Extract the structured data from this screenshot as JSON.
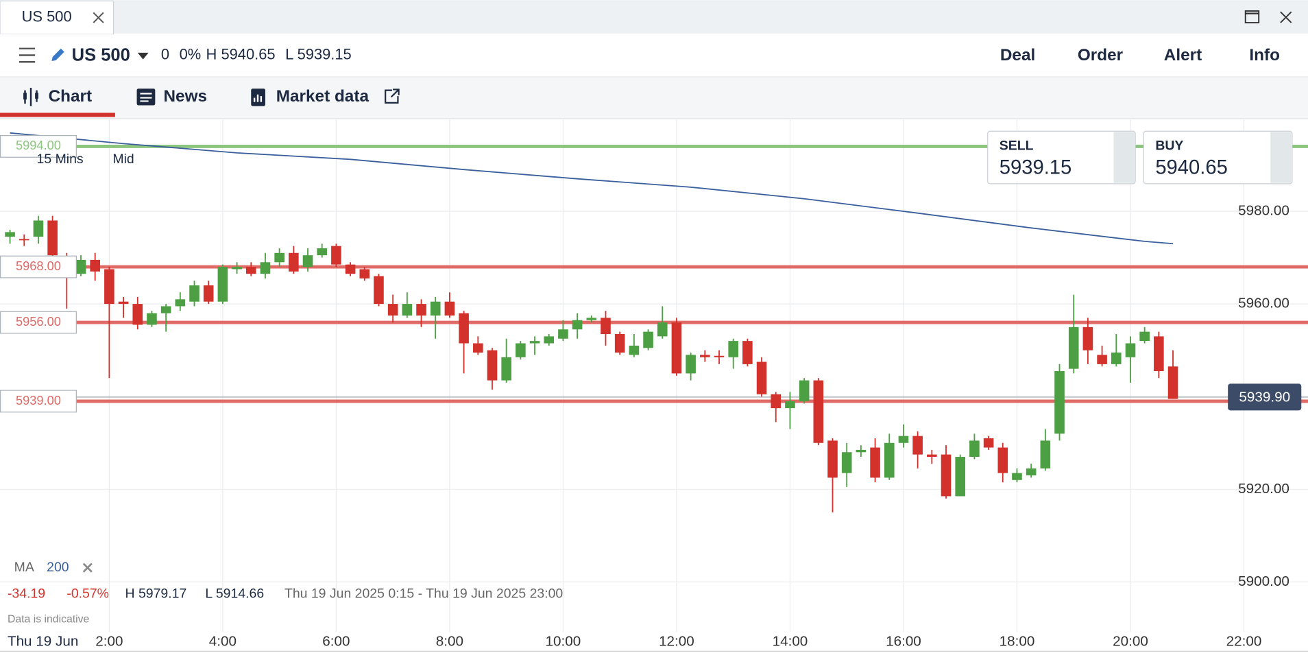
{
  "window": {
    "tab": "US 500"
  },
  "toolbar": {
    "instrument": "US 500",
    "change": "0",
    "change_pct": "0%",
    "high": "H 5940.65",
    "low": "L 5939.15",
    "actions": [
      "Deal",
      "Order",
      "Alert",
      "Info"
    ]
  },
  "tabs": [
    "Chart",
    "News",
    "Market data"
  ],
  "quote": {
    "sell_label": "SELL",
    "sell": "5939.15",
    "buy_label": "BUY",
    "buy": "5940.65"
  },
  "chart_info": {
    "interval": "15 Mins",
    "price_type": "Mid",
    "change": "-34.19",
    "change_pct": "-0.57%",
    "high": "H 5979.17",
    "low": "L 5914.66",
    "range": "Thu 19 Jun 2025 0:15 - Thu 19 Jun 2025 23:00",
    "note": "Data is indicative",
    "date_label": "Thu 19 Jun"
  },
  "chart_data": {
    "type": "candlestick",
    "up_color": "#4c9f42",
    "down_color": "#d3322c",
    "x": [
      0.25,
      0.5,
      0.75,
      1,
      1.25,
      1.5,
      1.75,
      2,
      2.25,
      2.5,
      2.75,
      3,
      3.25,
      3.5,
      3.75,
      4,
      4.25,
      4.5,
      4.75,
      5,
      5.25,
      5.5,
      5.75,
      6,
      6.25,
      6.5,
      6.75,
      7,
      7.25,
      7.5,
      7.75,
      8,
      8.25,
      8.5,
      8.75,
      9,
      9.25,
      9.5,
      9.75,
      10,
      10.25,
      10.5,
      10.75,
      11,
      11.25,
      11.5,
      11.75,
      12,
      12.25,
      12.5,
      12.75,
      13,
      13.25,
      13.5,
      13.75,
      14,
      14.25,
      14.5,
      14.75,
      15,
      15.25,
      15.5,
      15.75,
      16,
      16.25,
      16.5,
      16.75,
      17,
      17.25,
      17.5,
      17.75,
      18,
      18.25,
      18.5,
      18.75,
      19,
      19.25,
      19.5,
      19.75,
      20,
      20.25,
      20.5,
      20.75
    ],
    "open": [
      5974.5,
      5974,
      5974.5,
      5978,
      5970,
      5966.5,
      5969.5,
      5967.5,
      5960.5,
      5960,
      5955.5,
      5958,
      5959.5,
      5960.5,
      5964,
      5960.5,
      5967.5,
      5968,
      5966.5,
      5969,
      5971,
      5968,
      5970.5,
      5972.5,
      5968.5,
      5967.5,
      5966,
      5960,
      5957.5,
      5960,
      5957.5,
      5960.5,
      5958,
      5951.5,
      5950,
      5943.5,
      5948.5,
      5951.5,
      5951.5,
      5952.5,
      5954.5,
      5956.5,
      5957,
      5953.5,
      5949,
      5950.5,
      5953,
      5956,
      5945,
      5949,
      5948.8,
      5948.5,
      5952,
      5947.5,
      5940.5,
      5937.5,
      5939,
      5943.5,
      5930.5,
      5923.5,
      5928,
      5929,
      5922.5,
      5930,
      5931.5,
      5927.5,
      5927.5,
      5918.5,
      5927,
      5931,
      5929,
      5922,
      5923,
      5924.5,
      5932,
      5946,
      5955,
      5949,
      5947,
      5948.5,
      5952,
      5953,
      5946.5
    ],
    "high": [
      5976,
      5975,
      5979,
      5979,
      5971,
      5970.5,
      5971,
      5968,
      5961.5,
      5961.5,
      5958.5,
      5960,
      5962.5,
      5965,
      5965,
      5968.5,
      5969,
      5969,
      5971,
      5972,
      5972.5,
      5972,
      5973,
      5973,
      5969,
      5968,
      5966.5,
      5962,
      5962.5,
      5961,
      5961.5,
      5962.5,
      5958.5,
      5953,
      5950.5,
      5952.5,
      5952,
      5953,
      5953.5,
      5956.5,
      5958,
      5957.5,
      5958.5,
      5954,
      5953.5,
      5954.5,
      5959.5,
      5957,
      5949.5,
      5950,
      5950,
      5952.5,
      5952.5,
      5948.5,
      5941,
      5941,
      5944,
      5944,
      5931,
      5930,
      5929.5,
      5931,
      5932,
      5934,
      5932.5,
      5928.5,
      5929.5,
      5927.5,
      5932,
      5931.5,
      5930,
      5924.5,
      5925.5,
      5933,
      5947,
      5962,
      5957,
      5951,
      5953.5,
      5953,
      5955,
      5954,
      5950
    ],
    "low": [
      5973,
      5972.5,
      5973,
      5969,
      5959,
      5966,
      5965,
      5944,
      5957,
      5954.5,
      5955,
      5954,
      5958.5,
      5959.5,
      5960,
      5960,
      5966.5,
      5966,
      5965.5,
      5968,
      5966.5,
      5967,
      5970,
      5968,
      5966,
      5965,
      5959.5,
      5956,
      5957,
      5955,
      5952.5,
      5957,
      5945,
      5949,
      5941.5,
      5943,
      5948,
      5949,
      5951,
      5952,
      5952.5,
      5956,
      5951,
      5949,
      5948.5,
      5950,
      5952.5,
      5944.5,
      5943.5,
      5947.5,
      5947,
      5946,
      5946.5,
      5940,
      5934.5,
      5933,
      5938.5,
      5929.5,
      5915,
      5920.5,
      5927,
      5921.5,
      5922,
      5929,
      5924.5,
      5925.5,
      5918,
      5918.5,
      5926.5,
      5928.5,
      5921.5,
      5921.5,
      5922.5,
      5924,
      5930.5,
      5945,
      5947,
      5946.5,
      5946.5,
      5943,
      5951.5,
      5944,
      5939.5
    ],
    "close": [
      5975.5,
      5973.8,
      5978,
      5970.5,
      5967.5,
      5969.5,
      5967,
      5960,
      5960,
      5955.5,
      5958,
      5959.5,
      5961,
      5964,
      5960.5,
      5968,
      5968,
      5966.5,
      5969,
      5971,
      5967,
      5970.5,
      5972,
      5968.5,
      5966.5,
      5965.5,
      5960,
      5957.5,
      5960,
      5957.5,
      5960.5,
      5957.5,
      5951.5,
      5949.5,
      5943.5,
      5948.5,
      5951.5,
      5952,
      5953,
      5954.5,
      5956.5,
      5957,
      5953.5,
      5949.5,
      5951,
      5954,
      5956,
      5945,
      5949,
      5948.5,
      5948.5,
      5952,
      5947,
      5940.5,
      5937.5,
      5939,
      5943.5,
      5930,
      5922.5,
      5928,
      5928.5,
      5922.5,
      5930,
      5931.5,
      5927.5,
      5927,
      5918.5,
      5927,
      5930.5,
      5929,
      5923.5,
      5923.5,
      5924.5,
      5930.5,
      5945.5,
      5955,
      5950,
      5947,
      5949.5,
      5951.5,
      5954,
      5945.5,
      5939.5
    ],
    "ma": {
      "name": "MA",
      "period": 200,
      "color": "#3a5f9c",
      "x": [
        0.25,
        2.25,
        4.25,
        6.25,
        8.25,
        10.25,
        12.25,
        14.25,
        16.25,
        18.25,
        20.25,
        20.75
      ],
      "values": [
        5996.9,
        5994.6,
        5992.6,
        5991.2,
        5989,
        5987,
        5985.2,
        5982.7,
        5979.6,
        5976.4,
        5973.5,
        5973
      ]
    },
    "levels": [
      {
        "value": 5994,
        "label": "5994.00",
        "color": "#8cc57e"
      },
      {
        "value": 5968,
        "label": "5968.00",
        "color": "#e06a66"
      },
      {
        "value": 5956,
        "label": "5956.00",
        "color": "#e06a66"
      },
      {
        "value": 5939,
        "label": "5939.00",
        "color": "#e06a66"
      }
    ],
    "last_price": {
      "value": 5939.9,
      "label": "5939.90"
    },
    "xlim": [
      0.074,
      23.13
    ],
    "ylim": [
      5889.2,
      5999.8
    ],
    "xticks": [
      {
        "value": 2,
        "label": "2:00"
      },
      {
        "value": 4,
        "label": "4:00"
      },
      {
        "value": 6,
        "label": "6:00"
      },
      {
        "value": 8,
        "label": "8:00"
      },
      {
        "value": 10,
        "label": "10:00"
      },
      {
        "value": 12,
        "label": "12:00"
      },
      {
        "value": 14,
        "label": "14:00"
      },
      {
        "value": 16,
        "label": "16:00"
      },
      {
        "value": 18,
        "label": "18:00"
      },
      {
        "value": 20,
        "label": "20:00"
      },
      {
        "value": 22,
        "label": "22:00"
      }
    ],
    "yticks": [
      {
        "value": 5900,
        "label": "5900.00"
      },
      {
        "value": 5920,
        "label": "5920.00"
      },
      {
        "value": 5960,
        "label": "5960.00"
      },
      {
        "value": 5980,
        "label": "5980.00"
      }
    ],
    "grid": true
  }
}
